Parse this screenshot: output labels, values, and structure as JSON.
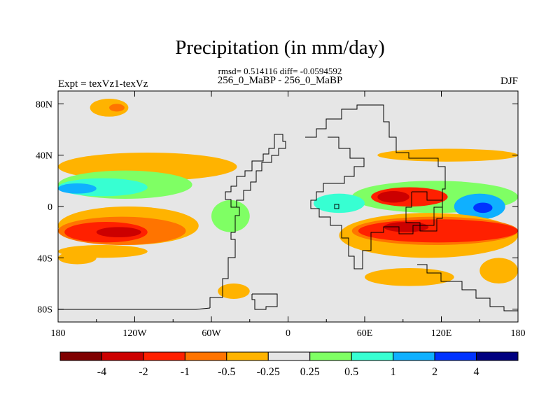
{
  "chart_data": {
    "type": "heatmap",
    "title": "Precipitation (in mm/day)",
    "stats": "rmsd= 0.514116 diff= -0.0594592",
    "case_label": "256_0_MaBP - 256_0_MaBP",
    "experiment": "Expt = texVz1-texVz",
    "season": "DJF",
    "x_range": [
      -180,
      180
    ],
    "y_range": [
      -90,
      90
    ],
    "x_ticks": [
      {
        "value": -180,
        "label": "180"
      },
      {
        "value": -120,
        "label": "120W"
      },
      {
        "value": -60,
        "label": "60W"
      },
      {
        "value": 0,
        "label": "0"
      },
      {
        "value": 60,
        "label": "60E"
      },
      {
        "value": 120,
        "label": "120E"
      },
      {
        "value": 180,
        "label": "180"
      }
    ],
    "y_ticks": [
      {
        "value": 80,
        "label": "80N"
      },
      {
        "value": 40,
        "label": "40N"
      },
      {
        "value": 0,
        "label": "0"
      },
      {
        "value": -40,
        "label": "40S"
      },
      {
        "value": -80,
        "label": "80S"
      }
    ],
    "colorbar": {
      "bins": [
        {
          "color": "#7f0000",
          "label": "-4"
        },
        {
          "color": "#cc0000",
          "label": "-2"
        },
        {
          "color": "#ff2000",
          "label": "-1"
        },
        {
          "color": "#ff7400",
          "label": "-0.5"
        },
        {
          "color": "#ffb300",
          "label": "-0.25"
        },
        {
          "color": "#e6e6e6",
          "label": "0.25"
        },
        {
          "color": "#7fff64",
          "label": "0.5"
        },
        {
          "color": "#37ffd2",
          "label": "1"
        },
        {
          "color": "#0fb0ff",
          "label": "2"
        },
        {
          "color": "#0033ff",
          "label": "4"
        },
        {
          "color": "#000080",
          "label": ""
        }
      ]
    },
    "fields": [
      {
        "level": -0.25,
        "color": "#ffb300",
        "lon": [
          -155,
          -125
        ],
        "lat": [
          84,
          70
        ]
      },
      {
        "level": -0.5,
        "color": "#ff7400",
        "lon": [
          -140,
          -128
        ],
        "lat": [
          80,
          74
        ]
      },
      {
        "level": -0.25,
        "color": "#ffb300",
        "lon": [
          -180,
          -40
        ],
        "lat": [
          42,
          20
        ]
      },
      {
        "level": 0.25,
        "color": "#7fff64",
        "lon": [
          -180,
          -75
        ],
        "lat": [
          28,
          6
        ]
      },
      {
        "level": 0.5,
        "color": "#37ffd2",
        "lon": [
          -180,
          -110
        ],
        "lat": [
          22,
          8
        ]
      },
      {
        "level": 1,
        "color": "#0fb0ff",
        "lon": [
          -180,
          -150
        ],
        "lat": [
          18,
          10
        ]
      },
      {
        "level": -0.25,
        "color": "#ffb300",
        "lon": [
          -180,
          -70
        ],
        "lat": [
          0,
          -30
        ]
      },
      {
        "level": -0.5,
        "color": "#ff7400",
        "lon": [
          -180,
          -80
        ],
        "lat": [
          -8,
          -30
        ]
      },
      {
        "level": -1,
        "color": "#ff2000",
        "lon": [
          -175,
          -110
        ],
        "lat": [
          -12,
          -28
        ]
      },
      {
        "level": -2,
        "color": "#cc0000",
        "lon": [
          -150,
          -115
        ],
        "lat": [
          -16,
          -24
        ]
      },
      {
        "level": -0.25,
        "color": "#ffb300",
        "lon": [
          -180,
          -110
        ],
        "lat": [
          -30,
          -40
        ]
      },
      {
        "level": 0.25,
        "color": "#7fff64",
        "lon": [
          -60,
          -30
        ],
        "lat": [
          5,
          -20
        ]
      },
      {
        "level": -0.25,
        "color": "#ffb300",
        "lon": [
          -55,
          -30
        ],
        "lat": [
          -60,
          -72
        ]
      },
      {
        "level": -0.25,
        "color": "#ffb300",
        "lon": [
          70,
          180
        ],
        "lat": [
          45,
          35
        ]
      },
      {
        "level": 0.25,
        "color": "#7fff64",
        "lon": [
          50,
          180
        ],
        "lat": [
          20,
          -5
        ]
      },
      {
        "level": 0.5,
        "color": "#37ffd2",
        "lon": [
          20,
          60
        ],
        "lat": [
          10,
          -5
        ]
      },
      {
        "level": 1,
        "color": "#0fb0ff",
        "lon": [
          130,
          170
        ],
        "lat": [
          10,
          -10
        ]
      },
      {
        "level": 2,
        "color": "#0033ff",
        "lon": [
          145,
          160
        ],
        "lat": [
          3,
          -5
        ]
      },
      {
        "level": -1,
        "color": "#ff2000",
        "lon": [
          65,
          125
        ],
        "lat": [
          15,
          0
        ]
      },
      {
        "level": -2,
        "color": "#cc0000",
        "lon": [
          70,
          95
        ],
        "lat": [
          12,
          3
        ]
      },
      {
        "level": -0.25,
        "color": "#ffb300",
        "lon": [
          40,
          180
        ],
        "lat": [
          -5,
          -40
        ]
      },
      {
        "level": -0.5,
        "color": "#ff7400",
        "lon": [
          50,
          180
        ],
        "lat": [
          -8,
          -30
        ]
      },
      {
        "level": -1,
        "color": "#ff2000",
        "lon": [
          55,
          180
        ],
        "lat": [
          -10,
          -28
        ]
      },
      {
        "level": -2,
        "color": "#cc0000",
        "lon": [
          75,
          110
        ],
        "lat": [
          -12,
          -20
        ]
      },
      {
        "level": -0.25,
        "color": "#ffb300",
        "lon": [
          60,
          130
        ],
        "lat": [
          -48,
          -62
        ]
      },
      {
        "level": -0.25,
        "color": "#ffb300",
        "lon": [
          150,
          180
        ],
        "lat": [
          -40,
          -60
        ]
      },
      {
        "level": -0.25,
        "color": "#ffb300",
        "lon": [
          -180,
          -150
        ],
        "lat": [
          -35,
          -45
        ]
      }
    ]
  }
}
